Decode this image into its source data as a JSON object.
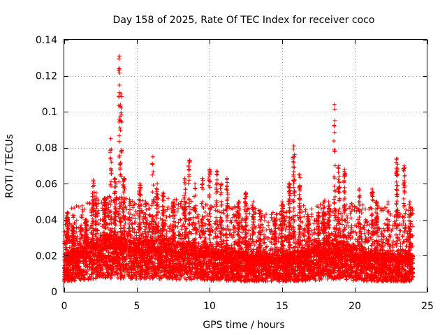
{
  "chart_data": {
    "type": "scatter",
    "title": "Day 158 of 2025, Rate Of TEC Index for receiver coco",
    "xlabel": "GPS time / hours",
    "ylabel": "ROTI / TECUs",
    "xlim": [
      0,
      25
    ],
    "ylim": [
      0,
      0.14
    ],
    "x_ticks": [
      0,
      5,
      10,
      15,
      20,
      25
    ],
    "y_ticks": [
      0,
      0.02,
      0.04,
      0.06,
      0.08,
      0.1,
      0.12,
      0.14
    ],
    "x_tick_labels": [
      "0",
      "5",
      "10",
      "15",
      "20",
      "25"
    ],
    "y_tick_labels": [
      "0",
      "0.02",
      "0.04",
      "0.06",
      "0.08",
      "0.1",
      "0.12",
      "0.14"
    ],
    "grid": true,
    "marker": "plus",
    "color": "#ff0000",
    "baseline": [
      [
        0,
        0.012
      ],
      [
        1,
        0.014
      ],
      [
        2,
        0.017
      ],
      [
        3,
        0.019
      ],
      [
        4,
        0.018
      ],
      [
        5,
        0.016
      ],
      [
        6,
        0.017
      ],
      [
        7,
        0.017
      ],
      [
        8,
        0.016
      ],
      [
        9,
        0.015
      ],
      [
        10,
        0.014
      ],
      [
        11,
        0.013
      ],
      [
        12,
        0.013
      ],
      [
        13,
        0.012
      ],
      [
        14,
        0.012
      ],
      [
        15,
        0.012
      ],
      [
        16,
        0.013
      ],
      [
        17,
        0.014
      ],
      [
        18,
        0.016
      ],
      [
        19,
        0.016
      ],
      [
        20,
        0.014
      ],
      [
        21,
        0.013
      ],
      [
        22,
        0.012
      ],
      [
        23,
        0.012
      ],
      [
        24,
        0.012
      ]
    ],
    "spikes": [
      {
        "x": 0.2,
        "y": 0.044
      },
      {
        "x": 0.6,
        "y": 0.036
      },
      {
        "x": 1.5,
        "y": 0.04
      },
      {
        "x": 2.0,
        "y": 0.062
      },
      {
        "x": 2.2,
        "y": 0.055
      },
      {
        "x": 2.8,
        "y": 0.052
      },
      {
        "x": 3.2,
        "y": 0.085
      },
      {
        "x": 3.5,
        "y": 0.063
      },
      {
        "x": 3.8,
        "y": 0.131
      },
      {
        "x": 3.9,
        "y": 0.11
      },
      {
        "x": 4.1,
        "y": 0.063
      },
      {
        "x": 4.5,
        "y": 0.05
      },
      {
        "x": 5.2,
        "y": 0.06
      },
      {
        "x": 5.6,
        "y": 0.05
      },
      {
        "x": 6.1,
        "y": 0.075
      },
      {
        "x": 6.4,
        "y": 0.06
      },
      {
        "x": 6.8,
        "y": 0.055
      },
      {
        "x": 7.5,
        "y": 0.05
      },
      {
        "x": 8.3,
        "y": 0.063
      },
      {
        "x": 8.6,
        "y": 0.073
      },
      {
        "x": 9.0,
        "y": 0.06
      },
      {
        "x": 9.5,
        "y": 0.063
      },
      {
        "x": 10.0,
        "y": 0.068
      },
      {
        "x": 10.5,
        "y": 0.067
      },
      {
        "x": 10.8,
        "y": 0.06
      },
      {
        "x": 11.2,
        "y": 0.063
      },
      {
        "x": 12.0,
        "y": 0.05
      },
      {
        "x": 12.5,
        "y": 0.055
      },
      {
        "x": 13.0,
        "y": 0.05
      },
      {
        "x": 13.5,
        "y": 0.045
      },
      {
        "x": 14.5,
        "y": 0.04
      },
      {
        "x": 15.0,
        "y": 0.05
      },
      {
        "x": 15.5,
        "y": 0.06
      },
      {
        "x": 15.8,
        "y": 0.081
      },
      {
        "x": 16.2,
        "y": 0.065
      },
      {
        "x": 16.8,
        "y": 0.042
      },
      {
        "x": 17.5,
        "y": 0.044
      },
      {
        "x": 17.9,
        "y": 0.05
      },
      {
        "x": 18.2,
        "y": 0.05
      },
      {
        "x": 18.6,
        "y": 0.104
      },
      {
        "x": 18.9,
        "y": 0.07
      },
      {
        "x": 19.3,
        "y": 0.068
      },
      {
        "x": 20.3,
        "y": 0.057
      },
      {
        "x": 21.2,
        "y": 0.057
      },
      {
        "x": 21.5,
        "y": 0.05
      },
      {
        "x": 22.3,
        "y": 0.05
      },
      {
        "x": 22.9,
        "y": 0.074
      },
      {
        "x": 23.4,
        "y": 0.07
      },
      {
        "x": 23.8,
        "y": 0.05
      }
    ]
  }
}
